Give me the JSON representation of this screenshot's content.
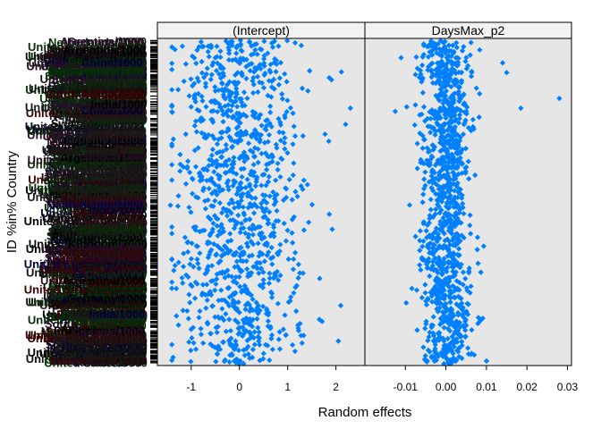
{
  "chart_data": {
    "type": "scatter",
    "subtype": "lattice dotplot of random effects (ranef) sorted by value, two panels",
    "xlabel": "Random effects",
    "ylabel": "ID %in% Country",
    "grid": false,
    "panel_background": "#e6e6e6",
    "strip_background": "#f2f2f2",
    "point_color": "#0080ff",
    "point_shape": "filled diamond",
    "panels": [
      {
        "name": "(Intercept)",
        "xlim": [
          -1.7,
          2.6
        ],
        "x_ticks": [
          -1,
          0,
          1,
          2
        ],
        "x_tick_labels": [
          "-1",
          "0",
          "1",
          "2"
        ],
        "n_groups": 3200,
        "distribution": {
          "center": 0.0,
          "sd": 0.65,
          "min": -1.4,
          "max": 2.3
        },
        "notable_points": [
          {
            "x": -1.43,
            "y_rank": 0.51
          },
          {
            "x": 2.2,
            "y_rank": 0.26
          },
          {
            "x": 2.3,
            "y_rank": 0.21
          },
          {
            "x": 2.1,
            "y_rank": 0.82
          },
          {
            "x": 2.05,
            "y_rank": 0.93
          }
        ]
      },
      {
        "name": "DaysMax_p2",
        "xlim": [
          -0.02,
          0.031
        ],
        "x_ticks": [
          -0.01,
          0.0,
          0.01,
          0.02,
          0.03
        ],
        "x_tick_labels": [
          "-0.01",
          "0.00",
          "0.01",
          "0.02",
          "0.03"
        ],
        "n_groups": 3200,
        "distribution": {
          "center": 0.0,
          "sd": 0.0032,
          "min": -0.013,
          "max": 0.0285
        },
        "notable_points": [
          {
            "x": 0.028,
            "y_rank": 0.18
          },
          {
            "x": 0.0185,
            "y_rank": 0.21
          },
          {
            "x": 0.015,
            "y_rank": 0.1
          },
          {
            "x": 0.014,
            "y_rank": 0.07
          },
          {
            "x": -0.0125,
            "y_rank": 0.22
          }
        ]
      }
    ],
    "group_labels_legible": [
      "United States/3000",
      "United Kingdom/2000",
      "South Africa/1000",
      "Switzerland/1000",
      "Philippines/1000",
      "Netherlands/1000",
      "India/1000",
      "Germany/1000",
      "Greece/1000",
      "China/1000",
      "Canada/1000",
      "Argentina/1000"
    ]
  }
}
